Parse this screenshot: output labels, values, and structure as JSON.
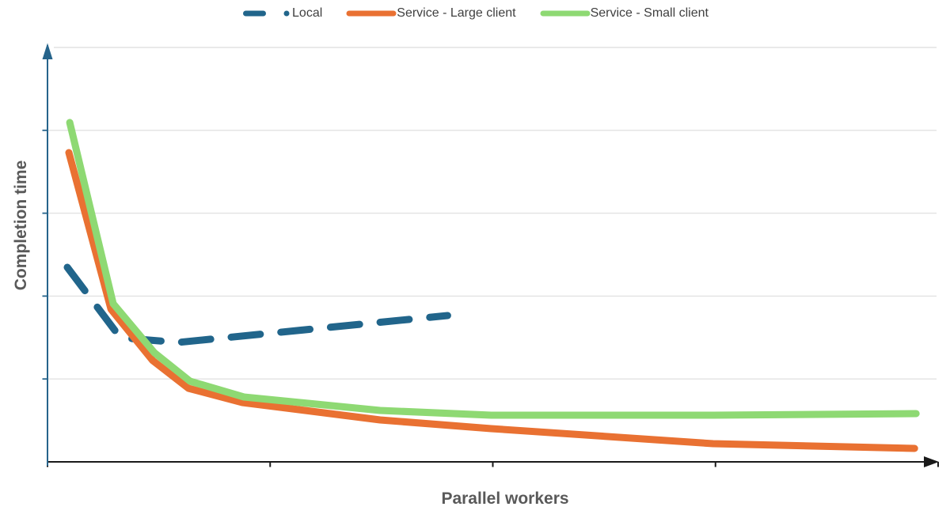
{
  "page": {
    "background": "#ffffff"
  },
  "legend": {
    "items": [
      {
        "label": "Local",
        "swatch": "dash-dot"
      },
      {
        "label": "Service - Large client",
        "swatch": "solid-line"
      },
      {
        "label": "Service - Small client",
        "swatch": "solid-line"
      }
    ]
  },
  "chart_data": {
    "type": "line",
    "title": "",
    "xlabel": "Parallel workers",
    "ylabel": "Completion time",
    "axes_note": "No numeric tick labels are shown; values are in axis units where x ticks sit at 1,2,3 and horizontal gridlines at 1,2,3,4,5",
    "x_axis": {
      "range_units": [
        0,
        4
      ],
      "ticks_units": [
        0,
        1,
        2,
        3,
        4
      ],
      "arrow": true,
      "numeric_labels_shown": false
    },
    "y_axis": {
      "range_units": [
        0,
        5
      ],
      "gridlines_units": [
        1,
        2,
        3,
        4,
        5
      ],
      "ticks_units": [
        1,
        2,
        3,
        4
      ],
      "arrow": true,
      "numeric_labels_shown": false,
      "grid": true
    },
    "legend_position": "top-center",
    "colors": {
      "local": "#21658B",
      "service_large": "#E97132",
      "service_small": "#8ED973",
      "y_axis": "#26648B",
      "x_axis": "#1A1A1A",
      "gridline": "#E2E2E2",
      "axis_title_text": "#595959",
      "legend_text": "#404040"
    },
    "series": [
      {
        "name": "Local",
        "color": "#21658B",
        "style": "dashed",
        "points": [
          [
            0.089,
            2.347
          ],
          [
            0.327,
            1.498
          ],
          [
            0.587,
            1.441
          ],
          [
            1.797,
            1.765
          ]
        ]
      },
      {
        "name": "Service - Large client",
        "color": "#E97132",
        "style": "solid",
        "points": [
          [
            0.096,
            3.731
          ],
          [
            0.285,
            1.842
          ],
          [
            0.473,
            1.221
          ],
          [
            0.633,
            0.887
          ],
          [
            0.875,
            0.716
          ],
          [
            1.494,
            0.506
          ],
          [
            1.993,
            0.401
          ],
          [
            2.989,
            0.219
          ],
          [
            3.894,
            0.162
          ]
        ]
      },
      {
        "name": "Service - Small client",
        "color": "#8ED973",
        "style": "solid",
        "points": [
          [
            0.1,
            4.094
          ],
          [
            0.295,
            1.908
          ],
          [
            0.48,
            1.317
          ],
          [
            0.64,
            0.973
          ],
          [
            0.882,
            0.782
          ],
          [
            1.494,
            0.62
          ],
          [
            1.993,
            0.563
          ],
          [
            2.989,
            0.563
          ],
          [
            3.901,
            0.582
          ]
        ]
      }
    ]
  }
}
